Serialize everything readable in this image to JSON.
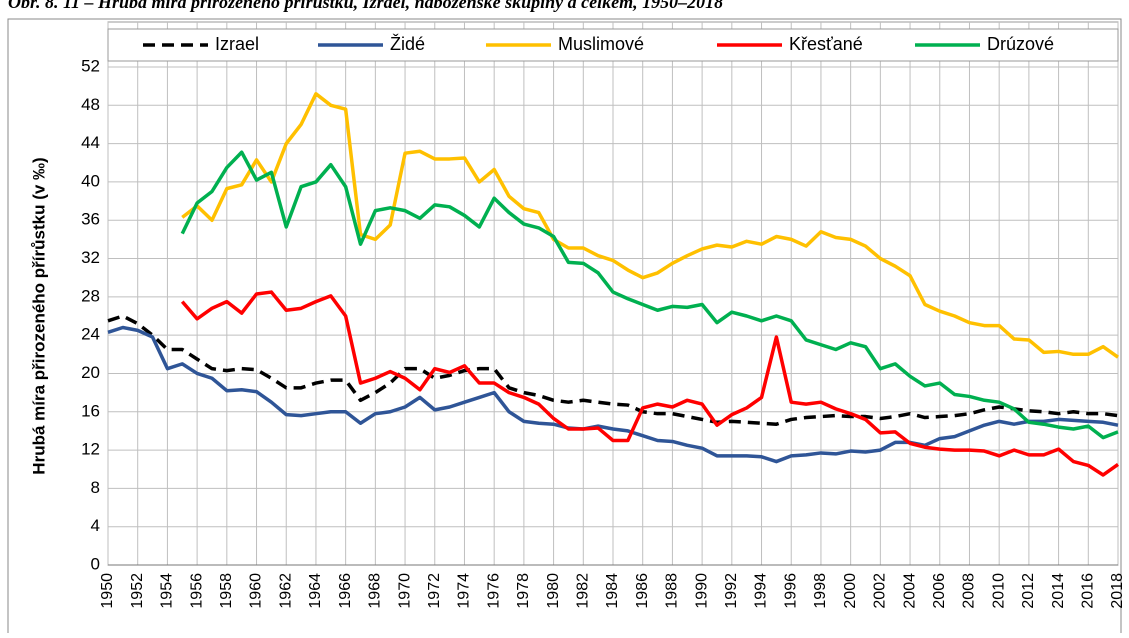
{
  "chart_data": {
    "type": "line",
    "title": "Obr. 8. 11 – Hrubá míra přirozeného přírůstku, Izrael, náboženské skupiny a celkem, 1950–2018",
    "y_label": "Hrubá míra přirozeného přírůstku (v ‰)",
    "x": [
      1950,
      1951,
      1952,
      1953,
      1954,
      1955,
      1956,
      1957,
      1958,
      1959,
      1960,
      1961,
      1962,
      1963,
      1964,
      1965,
      1966,
      1967,
      1968,
      1969,
      1970,
      1971,
      1972,
      1973,
      1974,
      1975,
      1976,
      1977,
      1978,
      1979,
      1980,
      1981,
      1982,
      1983,
      1984,
      1985,
      1986,
      1987,
      1988,
      1989,
      1990,
      1991,
      1992,
      1993,
      1994,
      1995,
      1996,
      1997,
      1998,
      1999,
      2000,
      2001,
      2002,
      2003,
      2004,
      2005,
      2006,
      2007,
      2008,
      2009,
      2010,
      2011,
      2012,
      2013,
      2014,
      2015,
      2016,
      2017,
      2018
    ],
    "xlim": [
      1950,
      2018
    ],
    "xticks": [
      1950,
      1952,
      1954,
      1956,
      1958,
      1960,
      1962,
      1964,
      1966,
      1968,
      1970,
      1972,
      1974,
      1976,
      1978,
      1980,
      1982,
      1984,
      1986,
      1988,
      1990,
      1992,
      1994,
      1996,
      1998,
      2000,
      2002,
      2004,
      2006,
      2008,
      2010,
      2012,
      2014,
      2016,
      2018
    ],
    "ylim": [
      0,
      52
    ],
    "yticks": [
      0,
      4,
      8,
      12,
      16,
      20,
      24,
      28,
      32,
      36,
      40,
      44,
      48,
      52
    ],
    "grid": true,
    "legend": "top",
    "series": [
      {
        "name": "Izrael",
        "color": "#000000",
        "style": "dashed",
        "values": [
          25.5,
          26,
          25.2,
          24,
          22.5,
          22.5,
          21.5,
          20.5,
          20.3,
          20.5,
          20.4,
          19.5,
          18.5,
          18.5,
          19,
          19.3,
          19.3,
          17.2,
          18,
          19,
          20.5,
          20.5,
          19.5,
          19.8,
          20.3,
          20.5,
          20.5,
          18.5,
          18,
          17.7,
          17.2,
          17,
          17.2,
          17,
          16.8,
          16.7,
          16,
          15.8,
          15.8,
          15.5,
          15.2,
          14.9,
          15,
          14.9,
          14.8,
          14.7,
          15.2,
          15.4,
          15.5,
          15.6,
          15.5,
          15.5,
          15.3,
          15.5,
          15.8,
          15.4,
          15.5,
          15.6,
          15.8,
          16.2,
          16.5,
          16.3,
          16.1,
          16,
          15.8,
          16,
          15.8,
          15.8,
          15.6
        ]
      },
      {
        "name": "Židé",
        "color": "#2f5597",
        "style": "solid",
        "values": [
          24.3,
          24.8,
          24.5,
          23.8,
          20.5,
          21,
          20,
          19.5,
          18.2,
          18.3,
          18.1,
          17,
          15.7,
          15.6,
          15.8,
          16,
          16,
          14.8,
          15.8,
          16,
          16.5,
          17.5,
          16.2,
          16.5,
          17,
          17.5,
          18,
          16,
          15,
          14.8,
          14.7,
          14.3,
          14.2,
          14.5,
          14.2,
          14,
          13.5,
          13,
          12.9,
          12.5,
          12.2,
          11.4,
          11.4,
          11.4,
          11.3,
          10.8,
          11.4,
          11.5,
          11.7,
          11.6,
          11.9,
          11.8,
          12,
          12.8,
          12.8,
          12.5,
          13.2,
          13.4,
          14,
          14.6,
          15,
          14.7,
          15,
          15,
          15.2,
          15.1,
          15,
          14.9,
          14.6
        ]
      },
      {
        "name": "Muslimové",
        "color": "#ffc000",
        "style": "solid",
        "values": [
          null,
          null,
          null,
          null,
          null,
          36.3,
          37.5,
          36,
          39.3,
          39.7,
          42.3,
          40,
          44,
          46,
          49.2,
          48,
          47.6,
          34.5,
          34,
          35.5,
          43,
          43.2,
          42.4,
          42.4,
          42.5,
          40,
          41.3,
          38.5,
          37.2,
          36.8,
          34,
          33.1,
          33.1,
          32.3,
          31.8,
          30.8,
          30,
          30.5,
          31.5,
          32.3,
          33,
          33.4,
          33.2,
          33.8,
          33.5,
          34.3,
          34,
          33.3,
          34.8,
          34.2,
          34,
          33.3,
          32,
          31.2,
          30.2,
          27.2,
          26.5,
          26,
          25.3,
          25,
          25,
          23.6,
          23.5,
          22.2,
          22.3,
          22,
          22,
          22.8,
          21.7
        ]
      },
      {
        "name": "Křesťané",
        "color": "#ff0000",
        "style": "solid",
        "values": [
          null,
          null,
          null,
          null,
          null,
          27.5,
          25.7,
          26.8,
          27.5,
          26.3,
          28.3,
          28.5,
          26.6,
          26.8,
          27.5,
          28.1,
          26,
          19,
          19.5,
          20.2,
          19.5,
          18.3,
          20.5,
          20.1,
          20.8,
          19,
          19,
          18,
          17.5,
          16.8,
          15.3,
          14.2,
          14.2,
          14.3,
          13,
          13,
          16.4,
          16.8,
          16.5,
          17.2,
          16.8,
          14.6,
          15.7,
          16.4,
          17.5,
          23.8,
          17,
          16.8,
          17,
          16.3,
          15.8,
          15.2,
          13.8,
          13.9,
          12.7,
          12.3,
          12.1,
          12,
          12,
          11.9,
          11.4,
          12,
          11.5,
          11.5,
          12.1,
          10.8,
          10.4,
          9.4,
          10.5
        ]
      },
      {
        "name": "Drúzové",
        "color": "#00b050",
        "style": "solid",
        "values": [
          null,
          null,
          null,
          null,
          null,
          34.6,
          37.8,
          39,
          41.5,
          43.1,
          40.2,
          41,
          35.3,
          39.5,
          40,
          41.8,
          39.5,
          33.5,
          37,
          37.3,
          37,
          36.2,
          37.6,
          37.4,
          36.5,
          35.3,
          38.3,
          36.8,
          35.6,
          35.2,
          34.3,
          31.6,
          31.5,
          30.5,
          28.5,
          27.8,
          27.2,
          26.6,
          27,
          26.9,
          27.2,
          25.3,
          26.4,
          26,
          25.5,
          26,
          25.5,
          23.5,
          23,
          22.5,
          23.2,
          22.8,
          20.5,
          21,
          19.7,
          18.7,
          19,
          17.8,
          17.6,
          17.2,
          17,
          16.3,
          14.9,
          14.7,
          14.4,
          14.2,
          14.5,
          13.3,
          13.9
        ]
      }
    ]
  }
}
